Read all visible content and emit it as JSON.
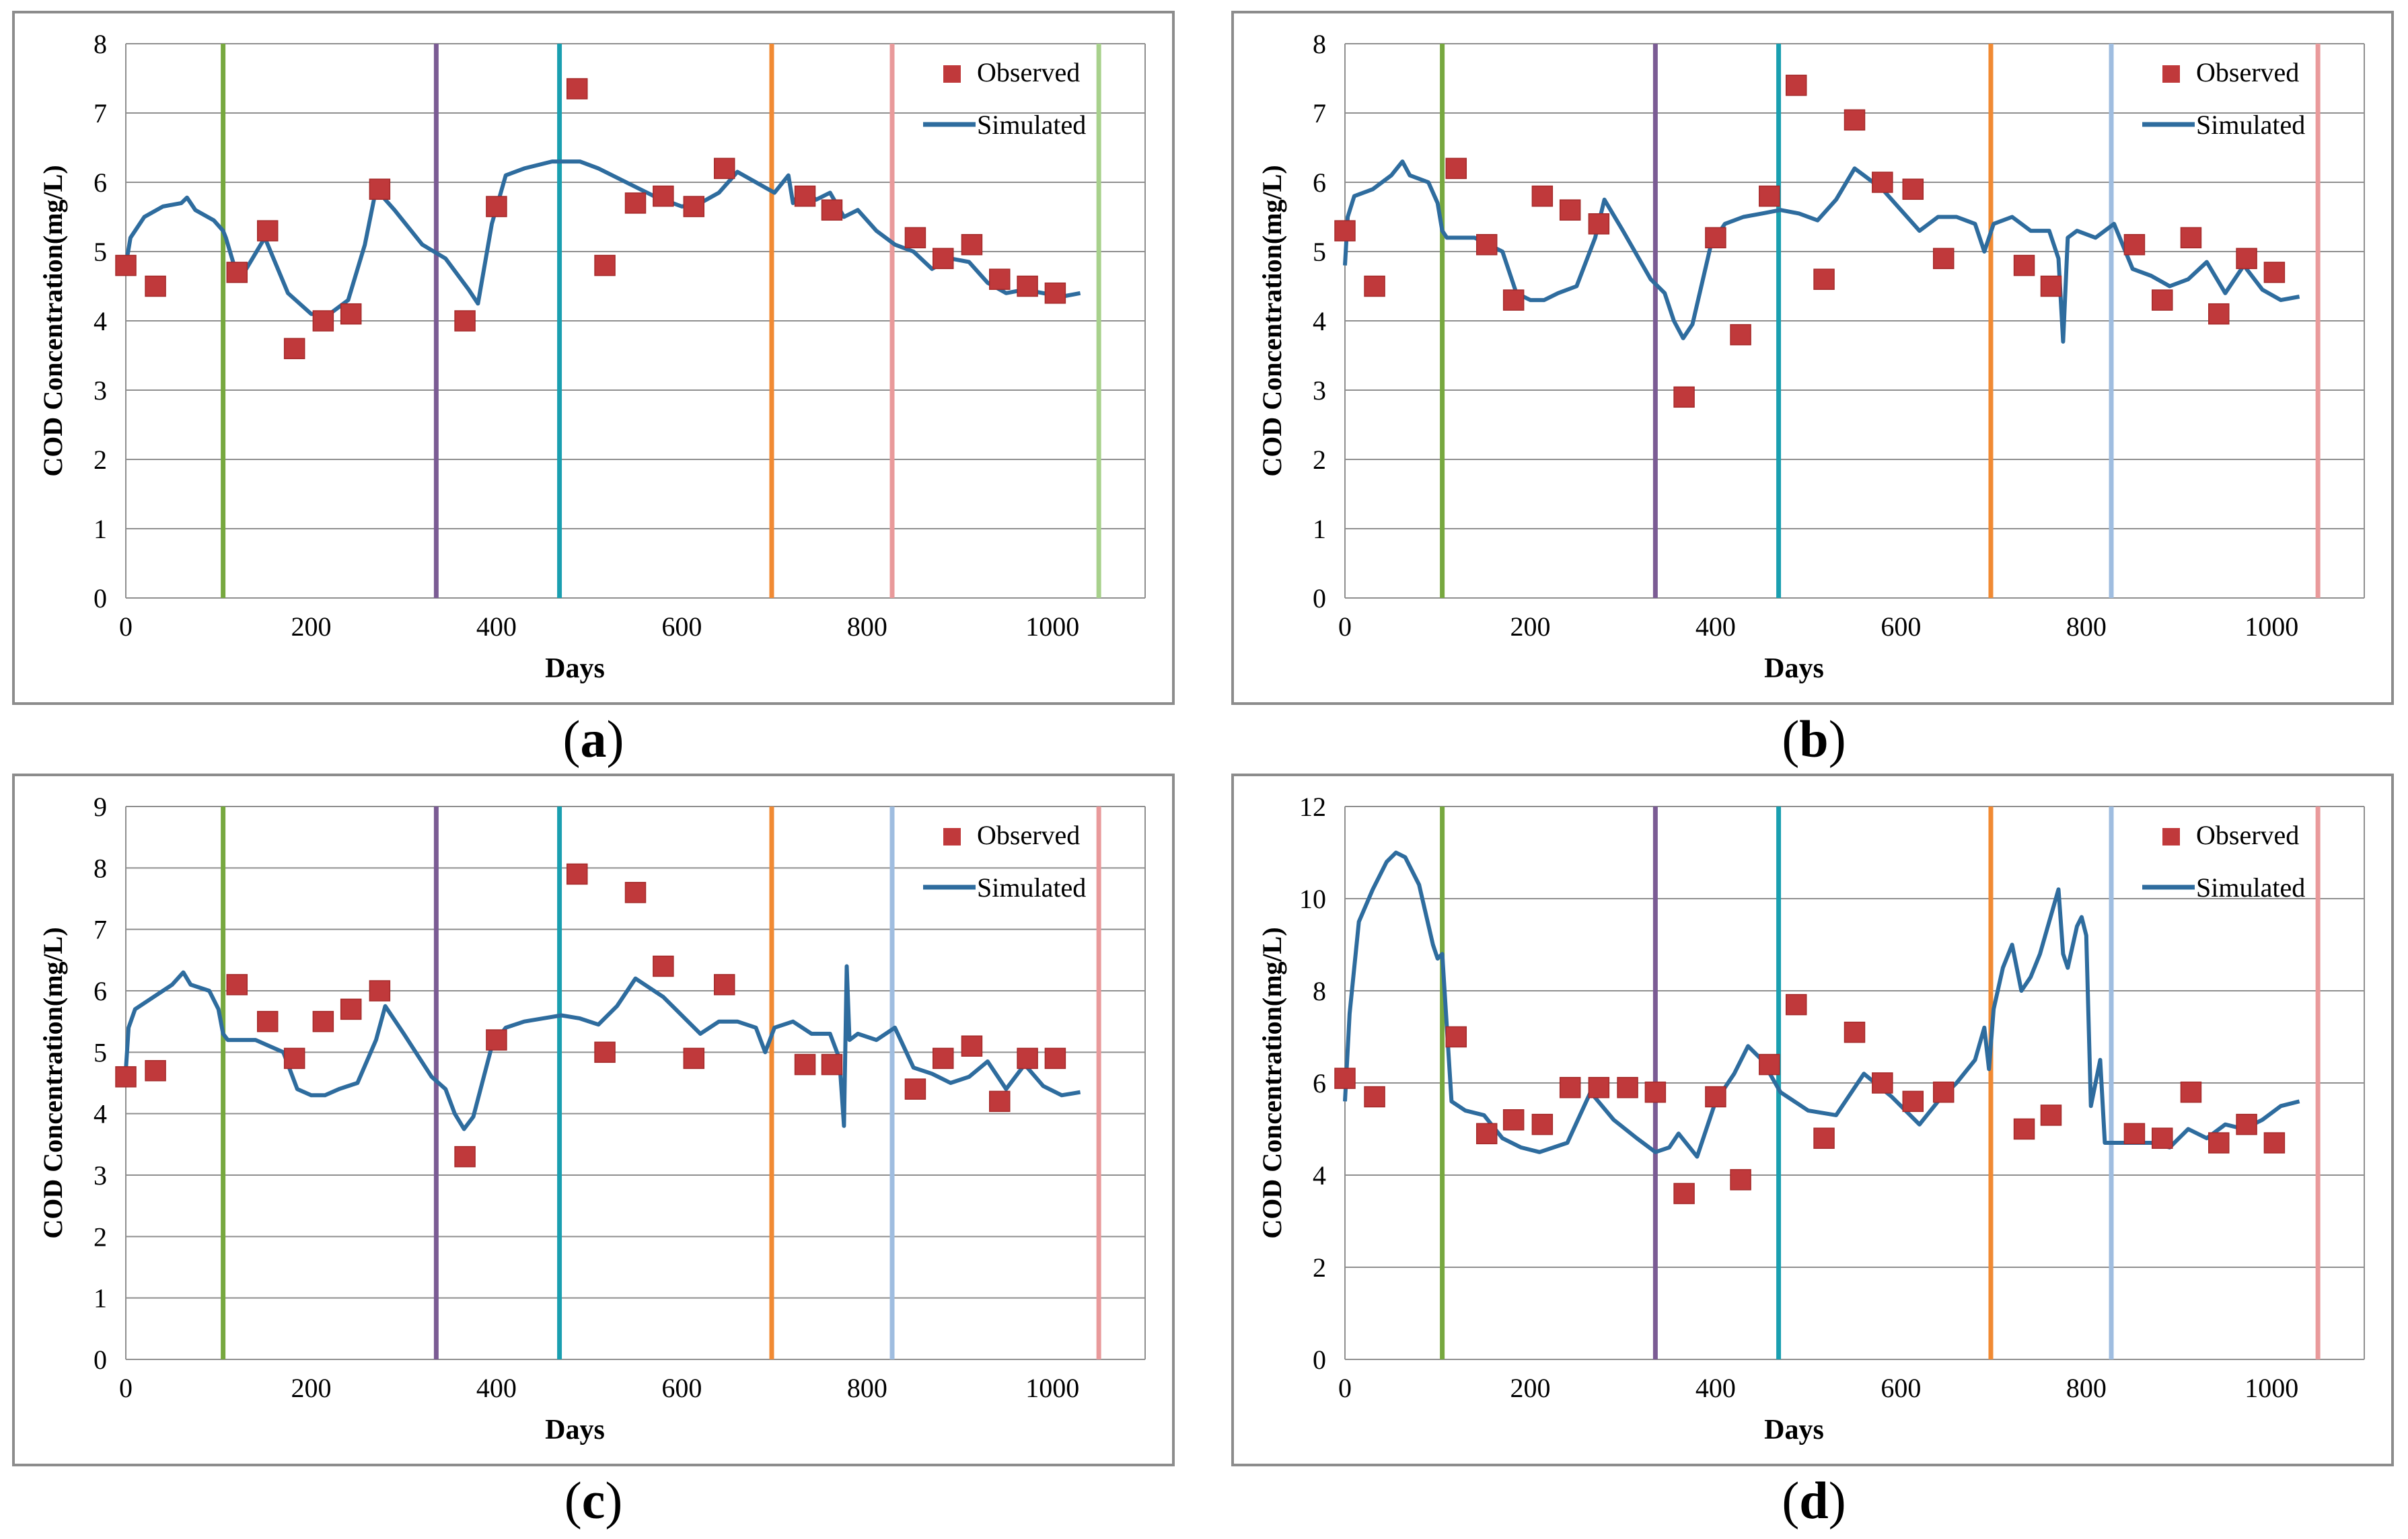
{
  "captions": [
    "(a)",
    "(b)",
    "(c)",
    "(d)"
  ],
  "colors": {
    "observed": "#c0393b",
    "simulated": "#2e6c9e",
    "grid": "#8f8f8f",
    "frame": "#8c8c8c",
    "phase_lines": [
      "#77a83f",
      "#7b5c94",
      "#1a9fb0",
      "#f18a33",
      "#e99a9b",
      "#9fbde0",
      "#a8d18c"
    ]
  },
  "chart_data": [
    {
      "id": "a",
      "type": "line+scatter",
      "title": "",
      "xlabel": "Days",
      "ylabel": "COD Concentration(mg/L)",
      "xlim": [
        0,
        1100
      ],
      "xticks": [
        0,
        200,
        400,
        600,
        800,
        1000
      ],
      "ylim": [
        0,
        8
      ],
      "yticks": [
        0,
        1,
        2,
        3,
        4,
        5,
        6,
        7,
        8
      ],
      "grid": true,
      "legend": {
        "position": "top-right",
        "entries": [
          "Observed",
          "Simulated"
        ]
      },
      "phase_boundaries": [
        {
          "day": 105,
          "color": "#77a83f"
        },
        {
          "day": 335,
          "color": "#7b5c94"
        },
        {
          "day": 468,
          "color": "#1a9fb0"
        },
        {
          "day": 697,
          "color": "#f18a33"
        },
        {
          "day": 827,
          "color": "#e99a9b"
        },
        {
          "day": 1050,
          "color": "#a8d18c"
        }
      ],
      "series": [
        {
          "name": "Observed",
          "kind": "scatter",
          "x": [
            0,
            32,
            120,
            153,
            182,
            213,
            243,
            274,
            366,
            400,
            487,
            517,
            550,
            580,
            613,
            646,
            733,
            762,
            852,
            882,
            913,
            943,
            973,
            1003
          ],
          "y": [
            4.8,
            4.5,
            4.7,
            5.3,
            3.6,
            4.0,
            4.1,
            5.9,
            4.0,
            5.65,
            7.35,
            4.8,
            5.7,
            5.8,
            5.65,
            6.2,
            5.8,
            5.6,
            5.2,
            4.9,
            5.1,
            4.6,
            4.5,
            4.4
          ]
        },
        {
          "name": "Simulated",
          "kind": "line",
          "x": [
            0,
            5,
            20,
            40,
            60,
            66,
            75,
            95,
            105,
            108,
            118,
            130,
            150,
            175,
            200,
            220,
            240,
            258,
            270,
            290,
            320,
            345,
            370,
            380,
            395,
            410,
            430,
            460,
            480,
            490,
            510,
            540,
            570,
            600,
            620,
            640,
            660,
            680,
            700,
            715,
            720,
            730,
            745,
            760,
            775,
            790,
            810,
            830,
            850,
            870,
            890,
            910,
            930,
            950,
            970,
            990,
            1010,
            1030
          ],
          "y": [
            4.8,
            5.2,
            5.5,
            5.65,
            5.7,
            5.78,
            5.6,
            5.45,
            5.3,
            5.2,
            4.75,
            4.75,
            5.2,
            4.4,
            4.1,
            4.1,
            4.3,
            5.1,
            5.9,
            5.6,
            5.1,
            4.9,
            4.45,
            4.25,
            5.4,
            6.1,
            6.2,
            6.3,
            6.3,
            6.3,
            6.2,
            6.0,
            5.8,
            5.65,
            5.7,
            5.85,
            6.15,
            6.0,
            5.85,
            6.1,
            5.7,
            5.9,
            5.75,
            5.85,
            5.5,
            5.6,
            5.3,
            5.1,
            5.0,
            4.75,
            4.9,
            4.85,
            4.55,
            4.4,
            4.45,
            4.4,
            4.35,
            4.4
          ]
        }
      ]
    },
    {
      "id": "b",
      "type": "line+scatter",
      "title": "",
      "xlabel": "Days",
      "ylabel": "COD Concentration(mg/L)",
      "xlim": [
        0,
        1100
      ],
      "xticks": [
        0,
        200,
        400,
        600,
        800,
        1000
      ],
      "ylim": [
        0,
        8
      ],
      "yticks": [
        0,
        1,
        2,
        3,
        4,
        5,
        6,
        7,
        8
      ],
      "grid": true,
      "legend": {
        "position": "top-right",
        "entries": [
          "Observed",
          "Simulated"
        ]
      },
      "phase_boundaries": [
        {
          "day": 105,
          "color": "#77a83f"
        },
        {
          "day": 335,
          "color": "#7b5c94"
        },
        {
          "day": 468,
          "color": "#1a9fb0"
        },
        {
          "day": 697,
          "color": "#f18a33"
        },
        {
          "day": 827,
          "color": "#9fbde0"
        },
        {
          "day": 1050,
          "color": "#e99a9b"
        }
      ],
      "series": [
        {
          "name": "Observed",
          "kind": "scatter",
          "x": [
            0,
            32,
            120,
            153,
            182,
            213,
            243,
            274,
            366,
            400,
            427,
            458,
            487,
            517,
            550,
            580,
            613,
            646,
            733,
            762,
            852,
            882,
            913,
            943,
            973,
            1003
          ],
          "y": [
            5.3,
            4.5,
            6.2,
            5.1,
            4.3,
            5.8,
            5.6,
            5.4,
            2.9,
            5.2,
            3.8,
            5.8,
            7.4,
            4.6,
            6.9,
            6.0,
            5.9,
            4.9,
            4.8,
            4.5,
            5.1,
            4.3,
            5.2,
            4.1,
            4.9,
            4.7
          ]
        },
        {
          "name": "Simulated",
          "kind": "line",
          "x": [
            0,
            3,
            10,
            30,
            50,
            62,
            70,
            90,
            100,
            105,
            110,
            120,
            140,
            155,
            170,
            185,
            200,
            215,
            230,
            250,
            270,
            280,
            300,
            330,
            345,
            355,
            365,
            375,
            395,
            410,
            430,
            450,
            470,
            490,
            510,
            530,
            550,
            560,
            580,
            600,
            620,
            640,
            660,
            680,
            690,
            700,
            720,
            740,
            760,
            770,
            775,
            780,
            790,
            810,
            830,
            850,
            870,
            890,
            910,
            930,
            950,
            970,
            990,
            1010,
            1030
          ],
          "y": [
            4.8,
            5.5,
            5.8,
            5.9,
            6.1,
            6.3,
            6.1,
            6.0,
            5.7,
            5.3,
            5.2,
            5.2,
            5.2,
            5.1,
            5.0,
            4.4,
            4.3,
            4.3,
            4.4,
            4.5,
            5.2,
            5.75,
            5.3,
            4.6,
            4.4,
            4.0,
            3.75,
            3.95,
            5.1,
            5.4,
            5.5,
            5.55,
            5.6,
            5.55,
            5.45,
            5.75,
            6.2,
            6.1,
            5.9,
            5.6,
            5.3,
            5.5,
            5.5,
            5.4,
            5.0,
            5.4,
            5.5,
            5.3,
            5.3,
            4.9,
            3.7,
            5.2,
            5.3,
            5.2,
            5.4,
            4.75,
            4.65,
            4.5,
            4.6,
            4.85,
            4.4,
            4.8,
            4.45,
            4.3,
            4.35
          ]
        }
      ]
    },
    {
      "id": "c",
      "type": "line+scatter",
      "title": "",
      "xlabel": "Days",
      "ylabel": "COD Concentration(mg/L)",
      "xlim": [
        0,
        1100
      ],
      "xticks": [
        0,
        200,
        400,
        600,
        800,
        1000
      ],
      "ylim": [
        0,
        9
      ],
      "yticks": [
        0,
        1,
        2,
        3,
        4,
        5,
        6,
        7,
        8,
        9
      ],
      "grid": true,
      "legend": {
        "position": "top-right",
        "entries": [
          "Observed",
          "Simulated"
        ]
      },
      "phase_boundaries": [
        {
          "day": 105,
          "color": "#77a83f"
        },
        {
          "day": 335,
          "color": "#7b5c94"
        },
        {
          "day": 468,
          "color": "#1a9fb0"
        },
        {
          "day": 697,
          "color": "#f18a33"
        },
        {
          "day": 827,
          "color": "#9fbde0"
        },
        {
          "day": 1050,
          "color": "#e99a9b"
        }
      ],
      "series": [
        {
          "name": "Observed",
          "kind": "scatter",
          "x": [
            0,
            32,
            120,
            153,
            182,
            213,
            243,
            274,
            366,
            400,
            487,
            517,
            550,
            580,
            613,
            646,
            733,
            762,
            852,
            882,
            913,
            943,
            973,
            1003
          ],
          "y": [
            4.6,
            4.7,
            6.1,
            5.5,
            4.9,
            5.5,
            5.7,
            6.0,
            3.3,
            5.2,
            7.9,
            5.0,
            7.6,
            6.4,
            4.9,
            6.1,
            4.8,
            4.8,
            4.4,
            4.9,
            5.1,
            4.2,
            4.9,
            4.9
          ]
        },
        {
          "name": "Simulated",
          "kind": "line",
          "x": [
            0,
            3,
            10,
            30,
            50,
            62,
            70,
            90,
            100,
            105,
            110,
            120,
            140,
            155,
            170,
            185,
            200,
            215,
            230,
            250,
            270,
            280,
            300,
            330,
            345,
            355,
            365,
            375,
            395,
            410,
            430,
            450,
            470,
            490,
            510,
            530,
            550,
            560,
            580,
            600,
            620,
            640,
            660,
            680,
            690,
            700,
            720,
            740,
            760,
            770,
            775,
            778,
            781,
            790,
            810,
            830,
            850,
            870,
            890,
            910,
            930,
            950,
            970,
            990,
            1010,
            1030
          ],
          "y": [
            4.7,
            5.4,
            5.7,
            5.9,
            6.1,
            6.3,
            6.1,
            6.0,
            5.7,
            5.3,
            5.2,
            5.2,
            5.2,
            5.1,
            5.0,
            4.4,
            4.3,
            4.3,
            4.4,
            4.5,
            5.2,
            5.75,
            5.3,
            4.6,
            4.4,
            4.0,
            3.75,
            3.95,
            5.1,
            5.4,
            5.5,
            5.55,
            5.6,
            5.55,
            5.45,
            5.75,
            6.2,
            6.1,
            5.9,
            5.6,
            5.3,
            5.5,
            5.5,
            5.4,
            5.0,
            5.4,
            5.5,
            5.3,
            5.3,
            4.9,
            3.8,
            6.4,
            5.2,
            5.3,
            5.2,
            5.4,
            4.75,
            4.65,
            4.5,
            4.6,
            4.85,
            4.4,
            4.8,
            4.45,
            4.3,
            4.35
          ]
        }
      ]
    },
    {
      "id": "d",
      "type": "line+scatter",
      "title": "",
      "xlabel": "Days",
      "ylabel": "COD Concentration(mg/L)",
      "xlim": [
        0,
        1100
      ],
      "xticks": [
        0,
        200,
        400,
        600,
        800,
        1000
      ],
      "ylim": [
        0,
        12
      ],
      "yticks": [
        0,
        2,
        4,
        6,
        8,
        10,
        12
      ],
      "grid": true,
      "legend": {
        "position": "top-right",
        "entries": [
          "Observed",
          "Simulated"
        ]
      },
      "phase_boundaries": [
        {
          "day": 105,
          "color": "#77a83f"
        },
        {
          "day": 335,
          "color": "#7b5c94"
        },
        {
          "day": 468,
          "color": "#1a9fb0"
        },
        {
          "day": 697,
          "color": "#f18a33"
        },
        {
          "day": 827,
          "color": "#9fbde0"
        },
        {
          "day": 1050,
          "color": "#e99a9b"
        }
      ],
      "series": [
        {
          "name": "Observed",
          "kind": "scatter",
          "x": [
            0,
            32,
            120,
            153,
            182,
            213,
            243,
            274,
            305,
            335,
            366,
            400,
            427,
            458,
            487,
            517,
            550,
            580,
            613,
            646,
            733,
            762,
            852,
            882,
            913,
            943,
            973,
            1003
          ],
          "y": [
            6.1,
            5.7,
            7.0,
            4.9,
            5.2,
            5.1,
            5.9,
            5.9,
            5.9,
            5.8,
            3.6,
            5.7,
            3.9,
            6.4,
            7.7,
            4.8,
            7.1,
            6.0,
            5.6,
            5.8,
            5.0,
            5.3,
            4.9,
            4.8,
            5.8,
            4.7,
            5.1,
            4.7
          ]
        },
        {
          "name": "Simulated",
          "kind": "line",
          "x": [
            0,
            5,
            15,
            30,
            45,
            55,
            65,
            80,
            95,
            100,
            105,
            115,
            130,
            150,
            170,
            190,
            210,
            240,
            265,
            290,
            315,
            335,
            350,
            360,
            380,
            400,
            420,
            435,
            450,
            470,
            500,
            530,
            560,
            590,
            620,
            640,
            660,
            680,
            690,
            695,
            700,
            710,
            720,
            730,
            740,
            750,
            760,
            770,
            775,
            780,
            790,
            795,
            800,
            805,
            815,
            820,
            830,
            850,
            870,
            890,
            910,
            930,
            950,
            970,
            990,
            1010,
            1030
          ],
          "y": [
            5.6,
            7.5,
            9.5,
            10.2,
            10.8,
            11.0,
            10.9,
            10.3,
            9.0,
            8.7,
            8.8,
            5.6,
            5.4,
            5.3,
            4.8,
            4.6,
            4.5,
            4.7,
            5.8,
            5.2,
            4.8,
            4.5,
            4.6,
            4.9,
            4.4,
            5.6,
            6.2,
            6.8,
            6.5,
            5.8,
            5.4,
            5.3,
            6.2,
            5.7,
            5.1,
            5.6,
            6.0,
            6.5,
            7.2,
            6.3,
            7.6,
            8.5,
            9.0,
            8.0,
            8.3,
            8.8,
            9.5,
            10.2,
            8.8,
            8.5,
            9.4,
            9.6,
            9.2,
            5.5,
            6.5,
            4.7,
            4.7,
            4.7,
            4.7,
            4.6,
            5.0,
            4.8,
            5.1,
            5.0,
            5.2,
            5.5,
            5.6
          ]
        }
      ]
    }
  ]
}
